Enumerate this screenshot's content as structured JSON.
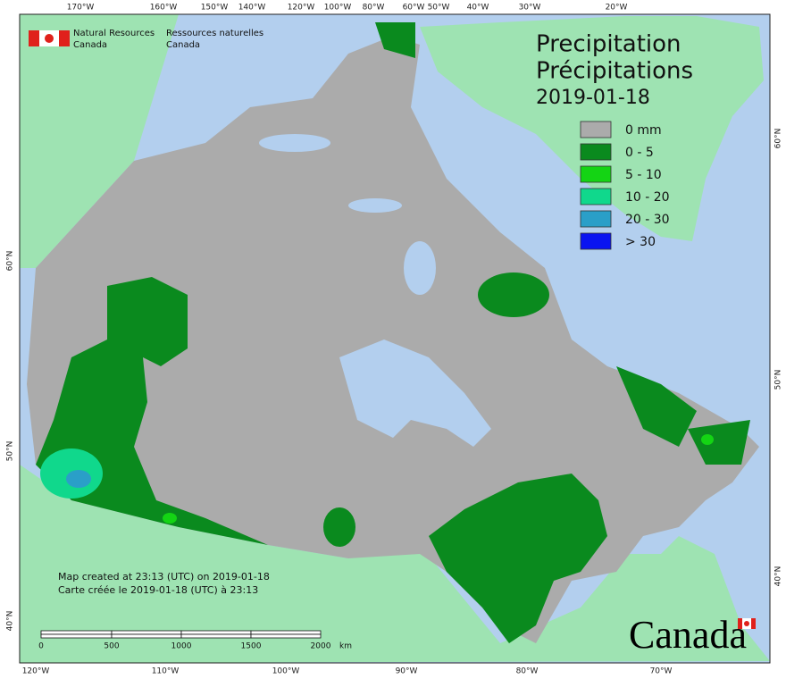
{
  "org": {
    "en": [
      "Natural Resources",
      "Canada"
    ],
    "fr": [
      "Ressources naturelles",
      "Canada"
    ]
  },
  "title": {
    "en": "Precipitation",
    "fr": "Précipitations",
    "date": "2019-01-18"
  },
  "legend": [
    {
      "label": "0 mm",
      "color": "#ababab"
    },
    {
      "label": "0 - 5",
      "color": "#0a8a1e"
    },
    {
      "label": "5 - 10",
      "color": "#14d414"
    },
    {
      "label": "10 - 20",
      "color": "#10d88c"
    },
    {
      "label": "20 - 30",
      "color": "#2a9fc8"
    },
    {
      "label": "> 30",
      "color": "#0a14f0"
    }
  ],
  "notes": [
    "Map created at 23:13 (UTC) on 2019-01-18",
    "Carte créée le 2019-01-18 (UTC) à 23:13"
  ],
  "scale_bar": {
    "labels": [
      "0",
      "500",
      "1000",
      "1500",
      "2000"
    ],
    "unit": "km"
  },
  "graticule": {
    "top": [
      "170°W",
      "160°W",
      "150°W",
      "140°W",
      "120°W",
      "100°W",
      "80°W",
      "60°W",
      "50°W",
      "40°W",
      "30°W",
      "20°W"
    ],
    "bottom": [
      "120°W",
      "110°W",
      "100°W",
      "90°W",
      "80°W",
      "70°W"
    ],
    "left": [
      "60°N",
      "50°N",
      "40°N"
    ],
    "right": [
      "60°N",
      "50°N",
      "40°N"
    ]
  },
  "wordmark": "Canada"
}
